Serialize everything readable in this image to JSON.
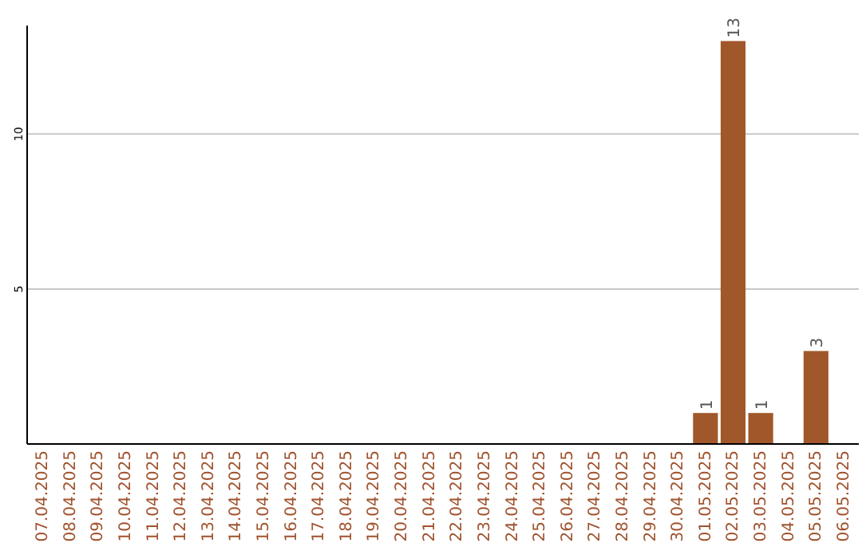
{
  "chart_data": {
    "type": "bar",
    "categories": [
      "07.04.2025",
      "08.04.2025",
      "09.04.2025",
      "10.04.2025",
      "11.04.2025",
      "12.04.2025",
      "13.04.2025",
      "14.04.2025",
      "15.04.2025",
      "16.04.2025",
      "17.04.2025",
      "18.04.2025",
      "19.04.2025",
      "20.04.2025",
      "21.04.2025",
      "22.04.2025",
      "23.04.2025",
      "24.04.2025",
      "25.04.2025",
      "26.04.2025",
      "27.04.2025",
      "28.04.2025",
      "29.04.2025",
      "30.04.2025",
      "01.05.2025",
      "02.05.2025",
      "03.05.2025",
      "04.05.2025",
      "05.05.2025",
      "06.05.2025"
    ],
    "values": [
      0,
      0,
      0,
      0,
      0,
      0,
      0,
      0,
      0,
      0,
      0,
      0,
      0,
      0,
      0,
      0,
      0,
      0,
      0,
      0,
      0,
      0,
      0,
      0,
      1,
      13,
      1,
      0,
      3,
      0
    ],
    "value_labels": [
      null,
      null,
      null,
      null,
      null,
      null,
      null,
      null,
      null,
      null,
      null,
      null,
      null,
      null,
      null,
      null,
      null,
      null,
      null,
      null,
      null,
      null,
      null,
      null,
      "1",
      "13",
      "1",
      null,
      "3",
      null
    ],
    "color": "#a0582a",
    "ylim": [
      0,
      13.5
    ],
    "yticks": [
      5,
      10
    ],
    "grid": "y"
  }
}
